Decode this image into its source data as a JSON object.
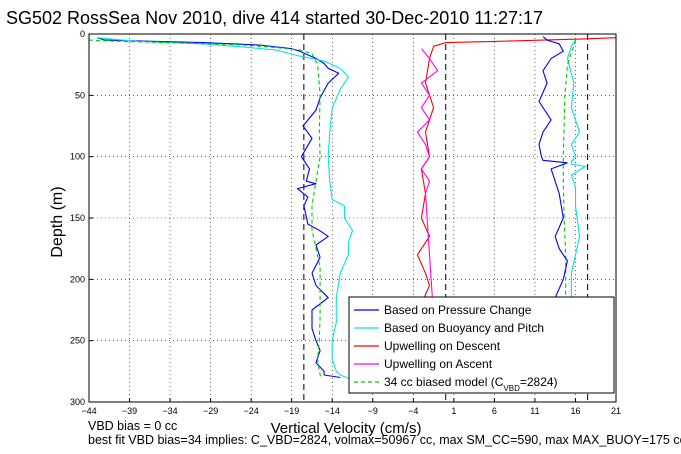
{
  "chart_data": {
    "type": "line",
    "title": "SG502 RossSea Nov 2010, dive 414 started 30-Dec-2010 11:27:17",
    "xlabel": "Vertical Velocity (cm/s)",
    "ylabel": "Depth (m)",
    "xlim": [
      -44,
      21
    ],
    "ylim": [
      0,
      300
    ],
    "y_reversed": true,
    "xticks": [
      -44,
      -39,
      -34,
      -29,
      -24,
      -19,
      -14,
      -9,
      -4,
      1,
      6,
      11,
      16,
      21
    ],
    "yticks": [
      0,
      50,
      100,
      150,
      200,
      250,
      300
    ],
    "grid": true,
    "legend_placement": "bottom-right",
    "vlines": [
      -17.5,
      0,
      17.5
    ],
    "series": [
      {
        "name": "Based on Pressure Change",
        "color": "#0000ff",
        "x": [
          -43,
          -42,
          -30,
          -23,
          -19,
          -18,
          -16,
          -15,
          -14.5,
          -13.2,
          -14.5,
          -15.5,
          -16,
          -17.6,
          -16.5,
          -17.8,
          -16.8,
          -17.2,
          -16,
          -18.3,
          -17,
          -17.5,
          -17,
          -15.6,
          -14.5,
          -16,
          -15.5,
          -16.5,
          -16,
          -14.5,
          -16.5,
          -16.5,
          -16,
          -15.5,
          -16,
          -15,
          -15,
          -13
        ],
        "y": [
          3,
          5,
          7,
          9,
          12,
          14,
          20,
          24,
          28,
          32,
          40,
          52,
          62,
          75,
          85,
          100,
          110,
          120,
          122,
          126,
          133,
          140,
          155,
          160,
          165,
          172,
          182,
          195,
          205,
          215,
          225,
          240,
          250,
          258,
          268,
          275,
          278,
          280
        ]
      },
      {
        "name": "Based on Buoyancy and Pitch",
        "color": "#00e5e5",
        "x": [
          -43,
          -38,
          -30,
          -26,
          -21,
          -18,
          -15,
          -14,
          -13,
          -12,
          -13,
          -14,
          -14.3,
          -14.5,
          -14.3,
          -14,
          -12.5,
          -12.5,
          -11.5,
          -12,
          -12,
          -13,
          -13.5,
          -13.5,
          -14,
          -14,
          -13.5,
          -13,
          -11.5
        ],
        "y": [
          3,
          6,
          8,
          10,
          13,
          18,
          22,
          25,
          28,
          35,
          45,
          60,
          80,
          100,
          120,
          135,
          140,
          150,
          160,
          170,
          180,
          195,
          215,
          235,
          250,
          265,
          275,
          278,
          282
        ]
      },
      {
        "name": "Upwelling on Descent",
        "color": "#ff0000",
        "x": [
          21,
          17,
          12,
          6,
          0,
          -1.5,
          -2,
          -2.5,
          -1.5,
          -2.5,
          -2,
          -3,
          -2.5,
          -3,
          -2,
          -3.5,
          -2.5,
          -2,
          -3,
          -2,
          -1.8,
          -2.5
        ],
        "y": [
          3,
          4,
          5,
          6,
          7,
          10,
          20,
          40,
          60,
          80,
          100,
          110,
          130,
          150,
          165,
          180,
          195,
          205,
          220,
          240,
          260,
          280
        ]
      },
      {
        "name": "Upwelling on Ascent",
        "color": "#ff00ff",
        "x": [
          -3,
          -2,
          -1,
          -3,
          -2,
          -3,
          -2,
          -3.5,
          -2.5,
          -2,
          -3,
          -2,
          -2.5,
          -2,
          -1.5,
          -1.8
        ],
        "y": [
          12,
          20,
          30,
          40,
          50,
          60,
          70,
          80,
          90,
          100,
          110,
          120,
          130,
          180,
          230,
          280
        ]
      },
      {
        "name": "34 cc biased model (C",
        "name_sub": "VBD",
        "name_suffix": "=2824)",
        "color": "#00cc00",
        "dashed": true,
        "x": [
          -44,
          -40,
          -34,
          -29,
          -25,
          -21,
          -18,
          -16.5,
          -15.8,
          -15.5,
          -15.6,
          -15.5,
          -16,
          -16.5,
          -16.5,
          -16,
          -15.5,
          -15.5,
          -15.5,
          -15.6,
          -15.8,
          -15.6,
          -15.4
        ],
        "y": [
          5,
          6,
          7,
          8,
          9,
          11,
          13,
          16,
          25,
          50,
          80,
          100,
          120,
          140,
          160,
          175,
          190,
          210,
          230,
          250,
          265,
          275,
          280
        ]
      }
    ],
    "ascent_series_overlay": {
      "blue_x": [
        12,
        12.5,
        14,
        14.5,
        13,
        12,
        12.5,
        11.5,
        13,
        12,
        11.5,
        11.8,
        12,
        15,
        13,
        14,
        14.5,
        13.5,
        14,
        15,
        14.5,
        13.5,
        12.5,
        12,
        13,
        12.5
      ],
      "blue_y": [
        2,
        5,
        8,
        14,
        20,
        30,
        40,
        55,
        70,
        80,
        90,
        100,
        103,
        105,
        110,
        130,
        150,
        165,
        175,
        185,
        200,
        215,
        230,
        240,
        260,
        280
      ],
      "cyan_x": [
        16,
        15.5,
        15,
        15.8,
        15.5,
        16.5,
        15.5,
        16,
        15.5,
        15.5,
        17.2,
        15.5,
        16,
        16,
        16.5,
        16,
        15.5,
        15.5,
        16,
        15,
        15.5
      ],
      "cyan_y": [
        5,
        10,
        20,
        40,
        60,
        80,
        90,
        100,
        104,
        106,
        108,
        115,
        125,
        140,
        165,
        180,
        195,
        215,
        240,
        260,
        280
      ],
      "green_x": [
        16,
        15.8,
        15.5,
        15,
        14.7,
        14.5,
        14.5,
        14.6,
        14.8,
        14.8,
        14.6,
        14.6
      ],
      "green_y": [
        5,
        10,
        15,
        25,
        50,
        100,
        120,
        150,
        180,
        210,
        250,
        280
      ]
    },
    "footer_lines": [
      "VBD bias = 0 cc",
      "best fit VBD bias=34 implies: C_VBD=2824, volmax=50967 cc, max SM_CC=590, max MAX_BUOY=175 cc"
    ]
  }
}
